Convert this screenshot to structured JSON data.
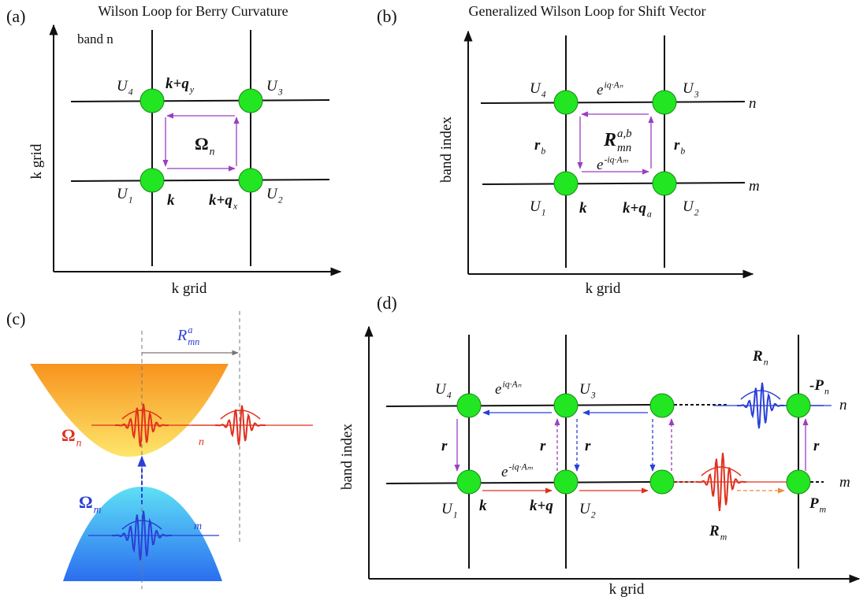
{
  "panel_a": {
    "tag": "(a)",
    "title": "Wilson Loop for Berry Curvature",
    "labels": [
      {
        "text": "band n"
      },
      {
        "text": "U",
        "sub": "4"
      },
      {
        "text": "k+q",
        "sub": "y"
      },
      {
        "text": "U",
        "sub": "3"
      },
      {
        "text": "Ω",
        "sub": "n"
      },
      {
        "text": "U",
        "sub": "1"
      },
      {
        "text": "k"
      },
      {
        "text": "k+q",
        "sub": "x"
      },
      {
        "text": "U",
        "sub": "2"
      },
      {
        "text": "k grid"
      },
      {
        "text": "k grid"
      }
    ]
  },
  "panel_b": {
    "tag": "(b)",
    "title": "Generalized Wilson Loop for Shift Vector",
    "labels": [
      {
        "text": "band index"
      },
      {
        "text": "U",
        "sub": "4"
      },
      {
        "text": "e",
        "sup": "iq·Aₙ"
      },
      {
        "text": "U",
        "sub": "3"
      },
      {
        "text": "n"
      },
      {
        "text": "R",
        "sup": "a,b",
        "sub": "mn"
      },
      {
        "text": "r",
        "sub": "b"
      },
      {
        "text": "r",
        "sub": "b"
      },
      {
        "text": "e",
        "sup": "-iq·Aₘ"
      },
      {
        "text": "m"
      },
      {
        "text": "U",
        "sub": "1"
      },
      {
        "text": "k"
      },
      {
        "text": "k+q",
        "sub": "a"
      },
      {
        "text": "U",
        "sub": "2"
      },
      {
        "text": "k grid"
      }
    ]
  },
  "panel_c": {
    "tag": "(c)",
    "labels": [
      {
        "text": "R",
        "sup": "a",
        "sub": "mn"
      },
      {
        "text": "Ω",
        "sub": "n"
      },
      {
        "text": "n"
      },
      {
        "text": "Ω",
        "sub": "m"
      },
      {
        "text": "m"
      }
    ]
  },
  "panel_d": {
    "tag": "(d)",
    "labels": [
      {
        "text": "U",
        "sub": "4"
      },
      {
        "text": "e",
        "sup": "iq·Aₙ"
      },
      {
        "text": "U",
        "sub": "3"
      },
      {
        "text": "R",
        "sub": "n"
      },
      {
        "text": "-P",
        "sub": "n"
      },
      {
        "text": "n"
      },
      {
        "text": "r"
      },
      {
        "text": "r"
      },
      {
        "text": "r"
      },
      {
        "text": "r"
      },
      {
        "text": "e",
        "sup": "-iq·Aₘ"
      },
      {
        "text": "m"
      },
      {
        "text": "U",
        "sub": "1"
      },
      {
        "text": "k"
      },
      {
        "text": "k+q"
      },
      {
        "text": "U",
        "sub": "2"
      },
      {
        "text": "R",
        "sub": "m"
      },
      {
        "text": "P",
        "sub": "m"
      },
      {
        "text": "band index"
      },
      {
        "text": "k grid"
      }
    ]
  }
}
